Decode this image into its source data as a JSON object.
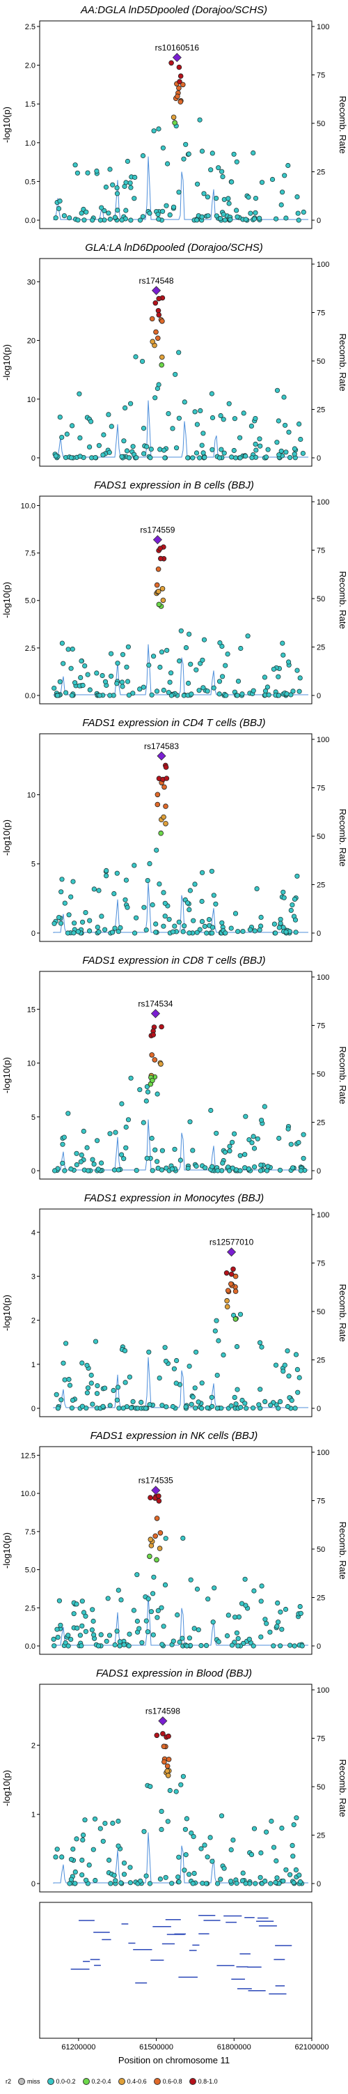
{
  "chart_data": [
    {
      "type": "scatter",
      "title": "AA:DGLA lnD5Dpooled (Dorajoo/SCHS)",
      "ylabel": "-log10(p)",
      "y2label": "Recomb. Rate",
      "ylim": [
        0,
        2.5
      ],
      "yticks": [
        0.0,
        0.5,
        1.0,
        1.5,
        2.0,
        2.5
      ],
      "ytick_labels": [
        "0.0",
        "0.5",
        "1.0",
        "1.5",
        "2.0",
        "2.5"
      ],
      "y2ticks": [
        0,
        25,
        50,
        75,
        100
      ],
      "lead_snp": "rs10160516",
      "lead": {
        "x": 61580000,
        "y": 2.1
      },
      "recomb_peaks": [
        {
          "x": 61120000,
          "h": 0.3
        },
        {
          "x": 61290000,
          "h": 0.2
        },
        {
          "x": 61350000,
          "h": 0.6
        },
        {
          "x": 61470000,
          "h": 1.0
        },
        {
          "x": 61600000,
          "h": 0.9
        },
        {
          "x": 61720000,
          "h": 0.5
        }
      ]
    },
    {
      "type": "scatter",
      "title": "GLA:LA lnD6Dpooled (Dorajoo/SCHS)",
      "ylabel": "-log10(p)",
      "y2label": "Recomb. Rate",
      "ylim": [
        0,
        33
      ],
      "yticks": [
        0,
        10,
        20,
        30
      ],
      "ytick_labels": [
        "0",
        "10",
        "20",
        "30"
      ],
      "y2ticks": [
        0,
        25,
        50,
        75,
        100
      ],
      "lead_snp": "rs174548",
      "lead": {
        "x": 61500000,
        "y": 28.5
      },
      "recomb_peaks": [
        {
          "x": 61130000,
          "h": 0.3
        },
        {
          "x": 61350000,
          "h": 0.5
        },
        {
          "x": 61470000,
          "h": 0.9
        },
        {
          "x": 61610000,
          "h": 0.6
        },
        {
          "x": 61730000,
          "h": 0.4
        }
      ]
    },
    {
      "type": "scatter",
      "title": "FADS1 expression in B cells (BBJ)",
      "ylabel": "-log10(p)",
      "y2label": "Recomb. Rate",
      "ylim": [
        0,
        10.2
      ],
      "yticks": [
        0.0,
        2.5,
        5.0,
        7.5,
        10.0
      ],
      "ytick_labels": [
        "0.0",
        "2.5",
        "5.0",
        "7.5",
        "10.0"
      ],
      "y2ticks": [
        0,
        25,
        50,
        75,
        100
      ],
      "lead_snp": "rs174559",
      "lead": {
        "x": 61505000,
        "y": 8.2
      },
      "recomb_peaks": [
        {
          "x": 61140000,
          "h": 0.3
        },
        {
          "x": 61350000,
          "h": 0.5
        },
        {
          "x": 61470000,
          "h": 0.8
        },
        {
          "x": 61600000,
          "h": 0.7
        },
        {
          "x": 61720000,
          "h": 0.4
        }
      ]
    },
    {
      "type": "scatter",
      "title": "FADS1 expression in CD4 T cells (BBJ)",
      "ylabel": "-log10(p)",
      "y2label": "Recomb. Rate",
      "ylim": [
        0,
        14
      ],
      "yticks": [
        0,
        5,
        10
      ],
      "ytick_labels": [
        "0",
        "5",
        "10"
      ],
      "y2ticks": [
        0,
        25,
        50,
        75,
        100
      ],
      "lead_snp": "rs174583",
      "lead": {
        "x": 61520000,
        "y": 12.8
      },
      "recomb_peaks": [
        {
          "x": 61140000,
          "h": 0.3
        },
        {
          "x": 61350000,
          "h": 0.5
        },
        {
          "x": 61470000,
          "h": 0.8
        },
        {
          "x": 61600000,
          "h": 0.7
        },
        {
          "x": 61720000,
          "h": 0.4
        }
      ]
    },
    {
      "type": "scatter",
      "title": "FADS1 expression in CD8 T cells (BBJ)",
      "ylabel": "-log10(p)",
      "y2label": "Recomb. Rate",
      "ylim": [
        0,
        18
      ],
      "yticks": [
        0,
        5,
        10,
        15
      ],
      "ytick_labels": [
        "0",
        "5",
        "10",
        "15"
      ],
      "y2ticks": [
        0,
        25,
        50,
        75,
        100
      ],
      "lead_snp": "rs174534",
      "lead": {
        "x": 61497000,
        "y": 14.6
      },
      "recomb_peaks": [
        {
          "x": 61140000,
          "h": 0.3
        },
        {
          "x": 61350000,
          "h": 0.5
        },
        {
          "x": 61470000,
          "h": 0.8
        },
        {
          "x": 61600000,
          "h": 0.7
        },
        {
          "x": 61720000,
          "h": 0.4
        }
      ]
    },
    {
      "type": "scatter",
      "title": "FADS1 expression in Monocytes (BBJ)",
      "ylabel": "-log10(p)",
      "y2label": "Recomb. Rate",
      "ylim": [
        0,
        4.4
      ],
      "yticks": [
        0,
        1,
        2,
        3,
        4
      ],
      "ytick_labels": [
        "0",
        "1",
        "2",
        "3",
        "4"
      ],
      "y2ticks": [
        0,
        25,
        50,
        75,
        100
      ],
      "lead_snp": "rs12577010",
      "lead": {
        "x": 61790000,
        "y": 3.55
      },
      "recomb_peaks": [
        {
          "x": 61140000,
          "h": 0.3
        },
        {
          "x": 61350000,
          "h": 0.5
        },
        {
          "x": 61470000,
          "h": 0.8
        },
        {
          "x": 61600000,
          "h": 0.7
        },
        {
          "x": 61720000,
          "h": 0.4
        }
      ]
    },
    {
      "type": "scatter",
      "title": "FADS1 expression in NK cells (BBJ)",
      "ylabel": "-log10(p)",
      "y2label": "Recomb. Rate",
      "ylim": [
        0,
        12.7
      ],
      "yticks": [
        0.0,
        2.5,
        5.0,
        7.5,
        10.0,
        12.5
      ],
      "ytick_labels": [
        "0.0",
        "2.5",
        "5.0",
        "7.5",
        "10.0",
        "12.5"
      ],
      "y2ticks": [
        0,
        25,
        50,
        75,
        100
      ],
      "lead_snp": "rs174535",
      "lead": {
        "x": 61498000,
        "y": 10.2
      },
      "recomb_peaks": [
        {
          "x": 61140000,
          "h": 0.3
        },
        {
          "x": 61350000,
          "h": 0.5
        },
        {
          "x": 61470000,
          "h": 0.8
        },
        {
          "x": 61600000,
          "h": 0.7
        },
        {
          "x": 61720000,
          "h": 0.4
        }
      ]
    },
    {
      "type": "scatter",
      "title": "FADS1 expression in Blood (BBJ)",
      "ylabel": "-log10(p)",
      "y2label": "Recomb. Rate",
      "ylim": [
        0,
        2.8
      ],
      "yticks": [
        0,
        1,
        2
      ],
      "ytick_labels": [
        "0",
        "1",
        "2"
      ],
      "y2ticks": [
        0,
        25,
        50,
        75,
        100
      ],
      "lead_snp": "rs174598",
      "lead": {
        "x": 61525000,
        "y": 2.35
      },
      "recomb_peaks": [
        {
          "x": 61140000,
          "h": 0.3
        },
        {
          "x": 61350000,
          "h": 0.5
        },
        {
          "x": 61470000,
          "h": 0.8
        },
        {
          "x": 61600000,
          "h": 0.7
        },
        {
          "x": 61720000,
          "h": 0.4
        }
      ]
    }
  ],
  "gene_track": {
    "xlim": [
      61050000,
      62100000
    ],
    "xticks": [
      61200000,
      61500000,
      61800000,
      62100000
    ],
    "xtick_labels": [
      "61200000",
      "61500000",
      "61800000",
      "62100000"
    ],
    "xlabel": "Position on chromosome 11"
  },
  "legend": {
    "title": "r2",
    "items": [
      {
        "label": "miss",
        "color": "#bdbdbd"
      },
      {
        "label": "0.0-0.2",
        "color": "#39c7c7"
      },
      {
        "label": "0.2-0.4",
        "color": "#6cd84a"
      },
      {
        "label": "0.4-0.6",
        "color": "#e0a13a"
      },
      {
        "label": "0.6-0.8",
        "color": "#e06a2a"
      },
      {
        "label": "0.8-1.0",
        "color": "#b5121b"
      }
    ],
    "lead_color": "#7a1fd1"
  },
  "colors": {
    "recomb": "#4f8fdb",
    "axis": "#000000"
  }
}
